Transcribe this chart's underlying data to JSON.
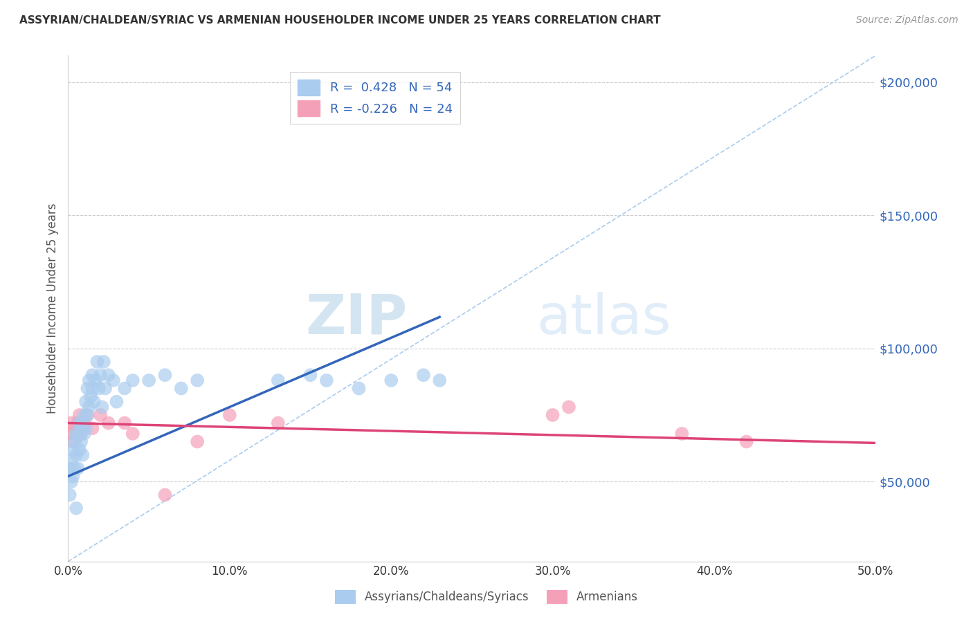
{
  "title": "ASSYRIAN/CHALDEAN/SYRIAC VS ARMENIAN HOUSEHOLDER INCOME UNDER 25 YEARS CORRELATION CHART",
  "source": "Source: ZipAtlas.com",
  "ylabel": "Householder Income Under 25 years",
  "legend_label1": "Assyrians/Chaldeans/Syriacs",
  "legend_label2": "Armenians",
  "r1": 0.428,
  "n1": 54,
  "r2": -0.226,
  "n2": 24,
  "color1": "#aaccee",
  "color2": "#f4a0b8",
  "line_color1": "#3366bb",
  "line_color2": "#dd4477",
  "diag_color": "#aaccee",
  "xmin": 0.0,
  "xmax": 0.5,
  "ymin": 20000,
  "ymax": 210000,
  "ytick_values": [
    50000,
    100000,
    150000,
    200000
  ],
  "ytick_labels": [
    "$50,000",
    "$100,000",
    "$150,000",
    "$200,000"
  ],
  "xtick_values": [
    0.0,
    0.1,
    0.2,
    0.3,
    0.4,
    0.5
  ],
  "xtick_labels": [
    "0.0%",
    "10.0%",
    "20.0%",
    "30.0%",
    "40.0%",
    "50.0%"
  ],
  "watermark_zip": "ZIP",
  "watermark_atlas": "atlas",
  "blue_x": [
    0.001,
    0.001,
    0.002,
    0.002,
    0.003,
    0.003,
    0.004,
    0.004,
    0.005,
    0.005,
    0.005,
    0.006,
    0.006,
    0.007,
    0.007,
    0.008,
    0.008,
    0.009,
    0.009,
    0.01,
    0.01,
    0.011,
    0.011,
    0.012,
    0.012,
    0.013,
    0.013,
    0.014,
    0.015,
    0.015,
    0.016,
    0.017,
    0.018,
    0.019,
    0.02,
    0.021,
    0.022,
    0.023,
    0.025,
    0.028,
    0.03,
    0.035,
    0.04,
    0.05,
    0.06,
    0.07,
    0.08,
    0.13,
    0.15,
    0.16,
    0.18,
    0.2,
    0.22,
    0.23
  ],
  "blue_y": [
    55000,
    45000,
    58000,
    50000,
    62000,
    52000,
    65000,
    55000,
    68000,
    60000,
    40000,
    67000,
    55000,
    72000,
    62000,
    70000,
    65000,
    72000,
    60000,
    68000,
    75000,
    70000,
    80000,
    75000,
    85000,
    78000,
    88000,
    82000,
    90000,
    85000,
    80000,
    88000,
    95000,
    85000,
    90000,
    78000,
    95000,
    85000,
    90000,
    88000,
    80000,
    85000,
    88000,
    88000,
    90000,
    85000,
    88000,
    88000,
    90000,
    88000,
    85000,
    88000,
    90000,
    88000
  ],
  "pink_x": [
    0.001,
    0.002,
    0.003,
    0.004,
    0.005,
    0.006,
    0.007,
    0.008,
    0.009,
    0.01,
    0.012,
    0.015,
    0.02,
    0.025,
    0.035,
    0.04,
    0.06,
    0.08,
    0.1,
    0.13,
    0.3,
    0.31,
    0.38,
    0.42
  ],
  "pink_y": [
    68000,
    72000,
    65000,
    70000,
    68000,
    72000,
    75000,
    68000,
    70000,
    72000,
    75000,
    70000,
    75000,
    72000,
    72000,
    68000,
    45000,
    65000,
    75000,
    72000,
    75000,
    78000,
    68000,
    65000
  ],
  "blue_trend_x": [
    0.0,
    0.23
  ],
  "blue_trend_y_intercept": 52000,
  "blue_trend_slope": 260000,
  "pink_trend_x": [
    0.0,
    0.5
  ],
  "pink_trend_y_intercept": 72000,
  "pink_trend_slope": -15000
}
